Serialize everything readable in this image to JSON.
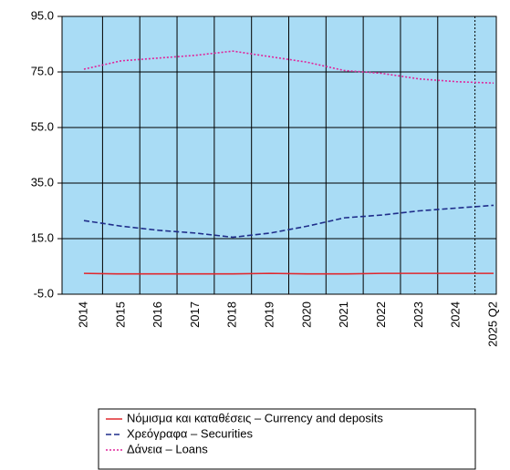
{
  "chart_data": {
    "type": "line",
    "categories": [
      "2014",
      "2015",
      "2016",
      "2017",
      "2018",
      "2019",
      "2020",
      "2021",
      "2022",
      "2023",
      "2024",
      "2025 Q2"
    ],
    "series": [
      {
        "name": "Νόμισμα και καταθέσεις – Currency and deposits",
        "color": "#e0282e",
        "dash": "solid",
        "values": [
          2.5,
          2.3,
          2.3,
          2.3,
          2.3,
          2.5,
          2.3,
          2.3,
          2.5,
          2.5,
          2.5,
          2.5
        ]
      },
      {
        "name": "Χρεόγραφα – Securities",
        "color": "#1f2d8a",
        "dash": "dashed",
        "values": [
          21.5,
          19.5,
          18,
          17,
          15.5,
          17,
          19.5,
          22.5,
          23.5,
          25,
          26,
          27
        ]
      },
      {
        "name": "Δάνεια – Loans",
        "color": "#e0249a",
        "dash": "dotted",
        "values": [
          76,
          79,
          80,
          81,
          82.5,
          80.5,
          78.5,
          75.5,
          74.5,
          72.5,
          71.5,
          71
        ]
      }
    ],
    "ylim": [
      -5,
      95
    ],
    "yticks": [
      {
        "value": -5,
        "label": "-5.0"
      },
      {
        "value": 15,
        "label": "15.0"
      },
      {
        "value": 35,
        "label": "35.0"
      },
      {
        "value": 55,
        "label": "55.0"
      },
      {
        "value": 75,
        "label": "75.0"
      },
      {
        "value": 95,
        "label": "95.0"
      }
    ],
    "grid": true,
    "background": "#a9dcf5",
    "legend": "bottom"
  }
}
